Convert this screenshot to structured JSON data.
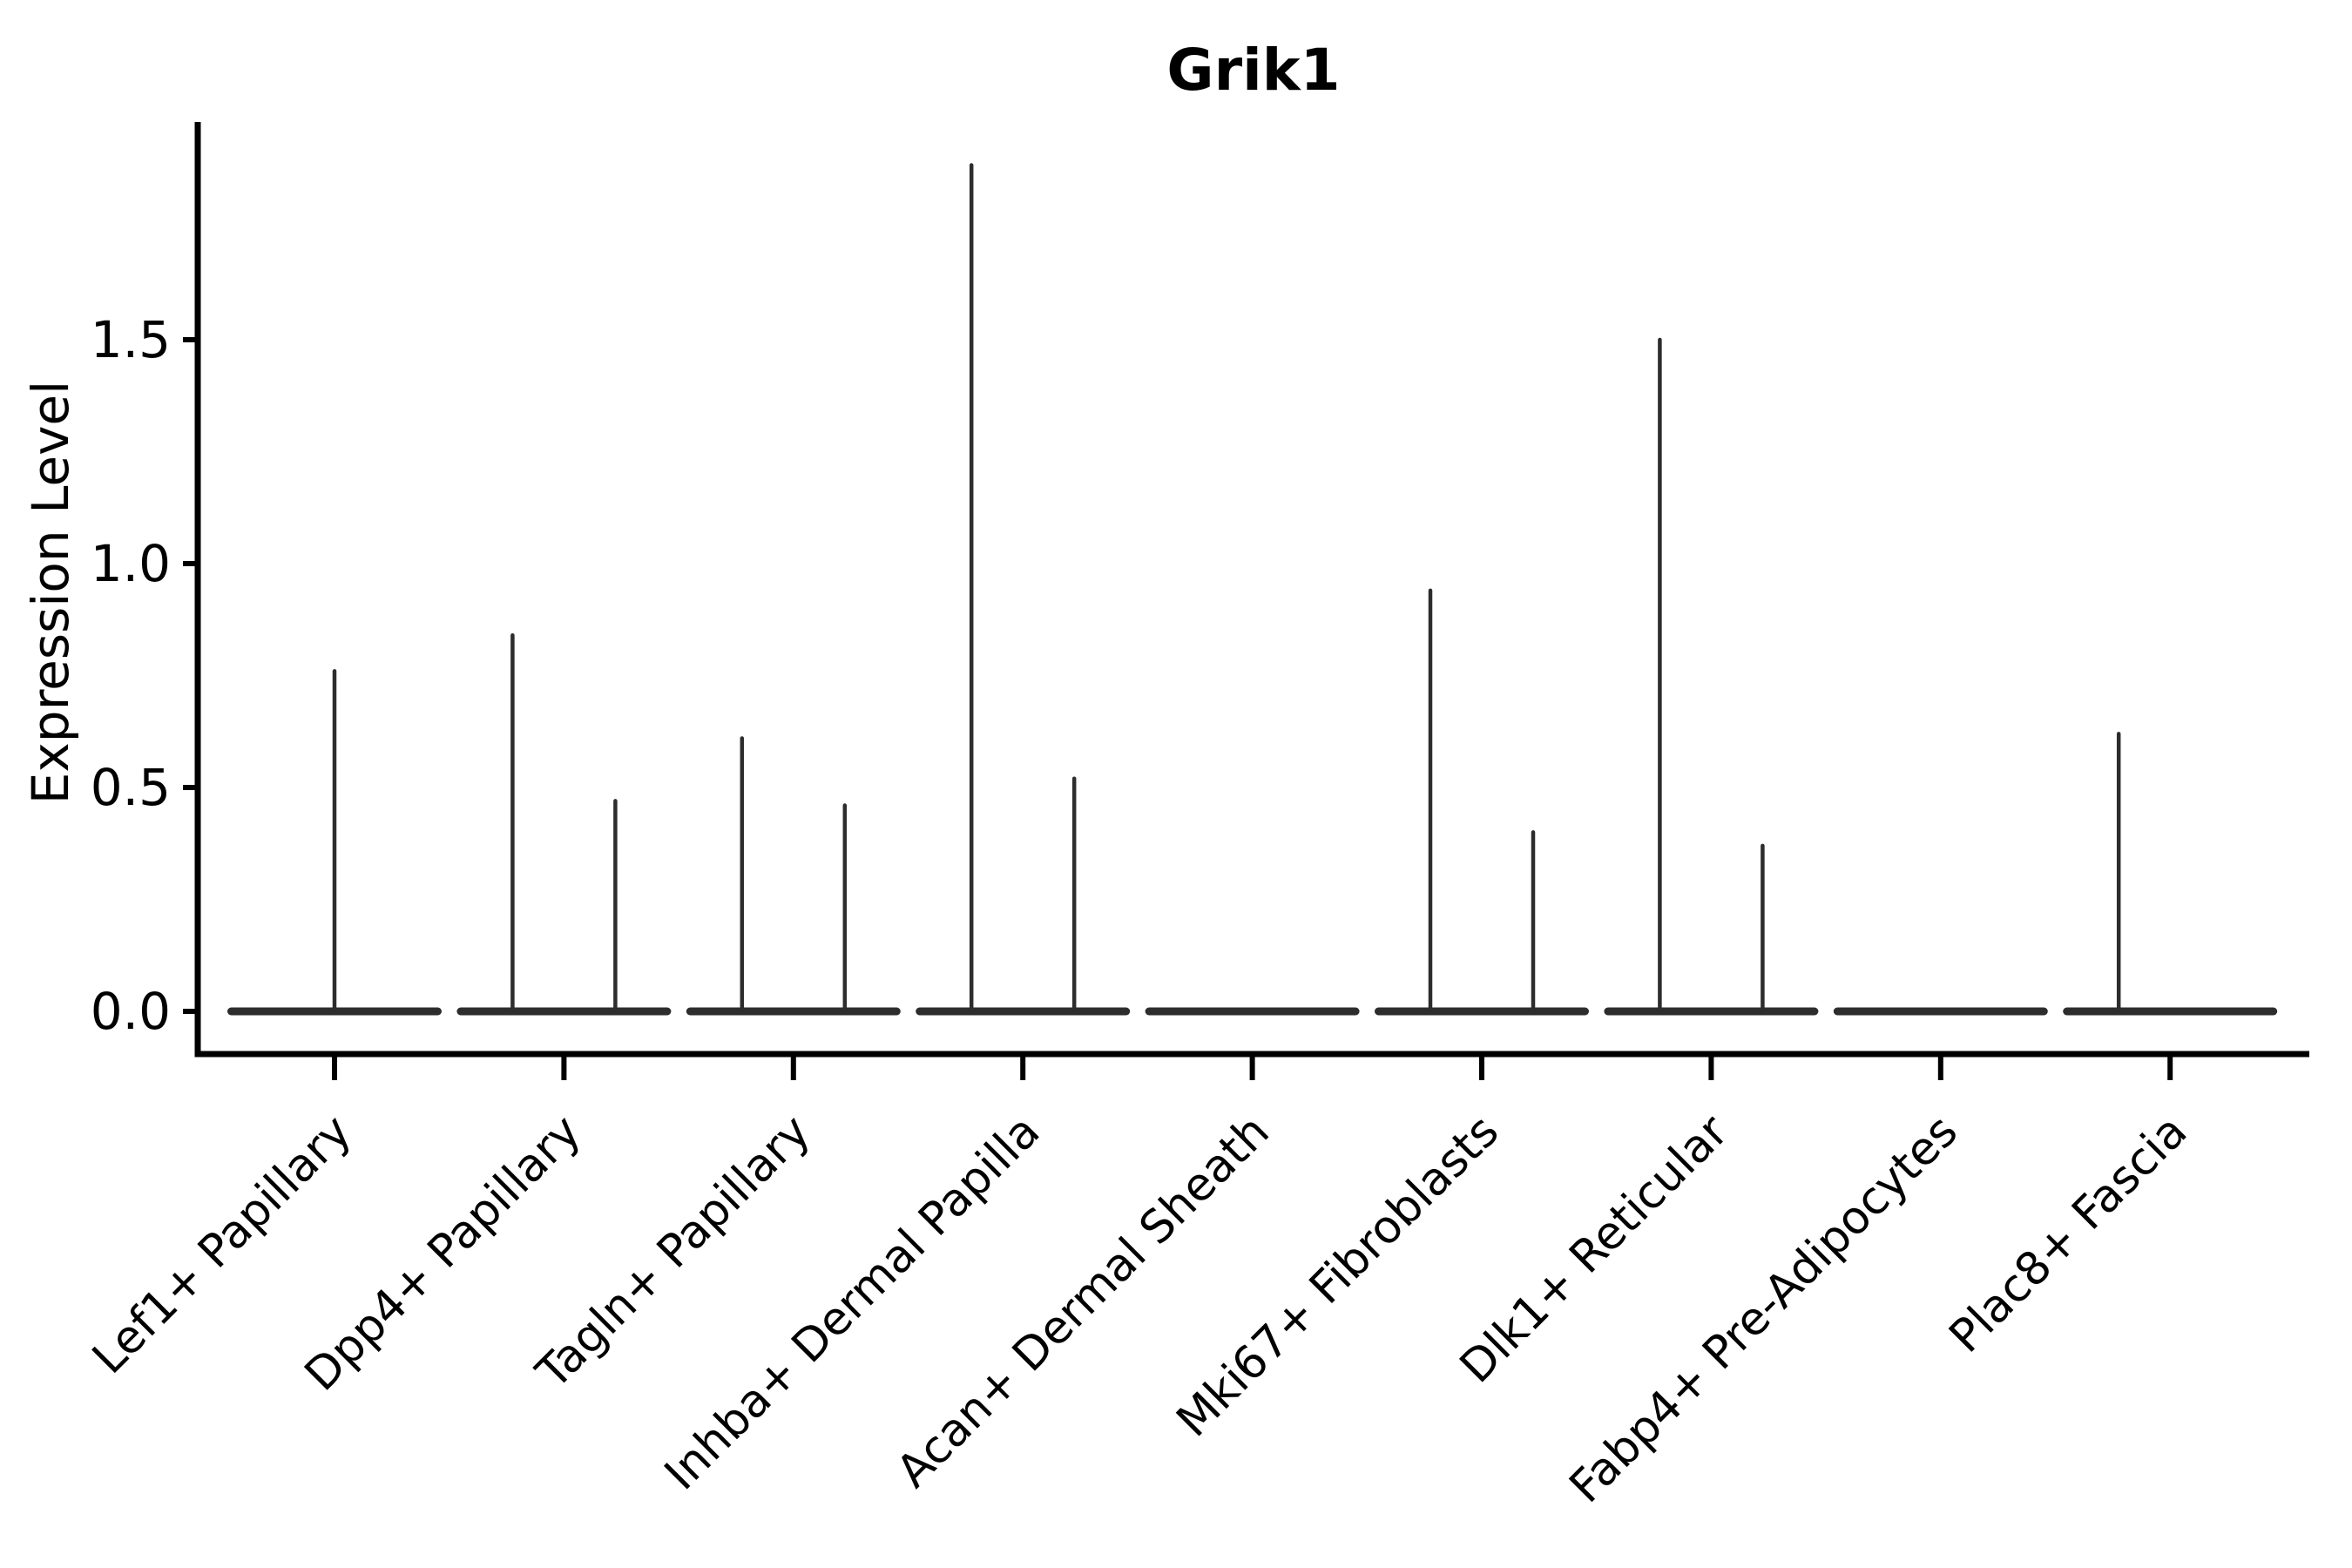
{
  "figure": {
    "background": "#ffffff"
  },
  "chart_data": {
    "type": "violin",
    "title": "Grik1",
    "xlabel": "",
    "ylabel": "Expression Level",
    "grid": false,
    "legend": "none",
    "axis_color": "#000000",
    "violin_color": "#2d2d2d",
    "ylim": [
      -0.095,
      1.985
    ],
    "ytick_values": [
      0.0,
      0.5,
      1.0,
      1.5
    ],
    "ytick_labels": [
      "0.0",
      "0.5",
      "1.0",
      "1.5"
    ],
    "xtick_rotation_deg": 45,
    "violin_width_frac": 0.915,
    "spike_offset_frac": 0.224,
    "baseline_value": 0.0,
    "categories": [
      {
        "label": "Lef1+ Papillary",
        "spikes": [
          {
            "offset": 0,
            "max": 0.76
          }
        ]
      },
      {
        "label": "Dpp4+ Papillary",
        "spikes": [
          {
            "offset": -1,
            "max": 0.84
          },
          {
            "offset": 1,
            "max": 0.47
          }
        ]
      },
      {
        "label": "Tagln+ Papillary",
        "spikes": [
          {
            "offset": -1,
            "max": 0.61
          },
          {
            "offset": 1,
            "max": 0.46
          }
        ]
      },
      {
        "label": "Inhba+ Dermal Papilla",
        "spikes": [
          {
            "offset": -1,
            "max": 1.89
          },
          {
            "offset": 1,
            "max": 0.52
          }
        ]
      },
      {
        "label": "Acan+ Dermal Sheath",
        "spikes": []
      },
      {
        "label": "Mki67+ Fibroblasts",
        "spikes": [
          {
            "offset": -1,
            "max": 0.94
          },
          {
            "offset": 1,
            "max": 0.4
          }
        ]
      },
      {
        "label": "Dlk1+ Reticular",
        "spikes": [
          {
            "offset": -1,
            "max": 1.5
          },
          {
            "offset": 1,
            "max": 0.37
          }
        ]
      },
      {
        "label": "Fabp4+ Pre-Adipocytes",
        "spikes": []
      },
      {
        "label": "Plac8+ Fascia",
        "spikes": [
          {
            "offset": -1,
            "max": 0.62
          }
        ]
      }
    ]
  }
}
